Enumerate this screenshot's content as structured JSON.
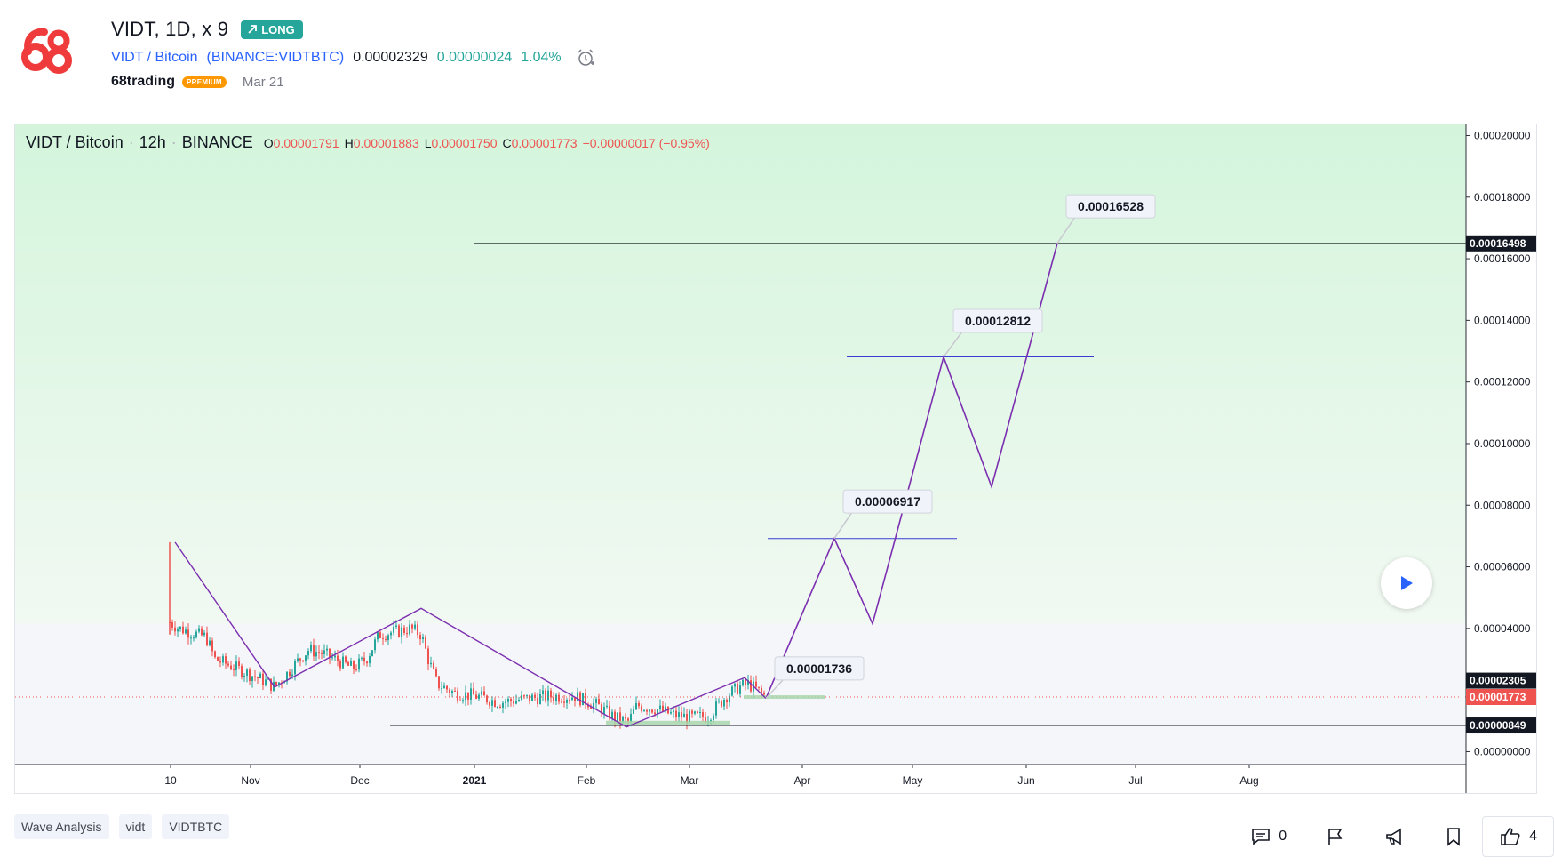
{
  "header": {
    "title": "VIDT, 1D, x 9",
    "direction_badge": "LONG",
    "symbol_name": "VIDT / Bitcoin",
    "exchange_symbol": "BINANCE:VIDTBTC",
    "price": "0.00002329",
    "change_abs": "0.00000024",
    "change_pct": "1.04%",
    "author": "68trading",
    "author_badge": "PREMIUM",
    "date": "Mar 21",
    "logo_text": "68"
  },
  "chart": {
    "legend_symbol": "VIDT / Bitcoin",
    "legend_interval": "12h",
    "legend_exchange": "BINANCE",
    "ohlc": {
      "o_label": "O",
      "o": "0.00001791",
      "h_label": "H",
      "h": "0.00001883",
      "l_label": "L",
      "l": "0.00001750",
      "c_label": "C",
      "c": "0.00001773",
      "change": "−0.00000017 (−0.95%)"
    },
    "colors": {
      "up": "#26a69a",
      "down": "#ef5350",
      "wave": "#7b2fb0",
      "level": "#3a3ad4",
      "bg_top": "#d4f5dc",
      "bg_bottom": "#f5f6fa"
    }
  },
  "chart_data": {
    "type": "candlestick",
    "title": "VIDT / Bitcoin · 12h · BINANCE",
    "y_axis_ticks": [
      "0.00020000",
      "0.00018000",
      "0.00016000",
      "0.00014000",
      "0.00012000",
      "0.00010000",
      "0.00008000",
      "0.00006000",
      "0.00004000",
      "0.00000000"
    ],
    "ylim": [
      -4.2e-06,
      0.0002036
    ],
    "x_axis_ticks": [
      "10",
      "Nov",
      "Dec",
      "2021",
      "Feb",
      "Mar",
      "Apr",
      "May",
      "Jun",
      "Jul",
      "Aug"
    ],
    "price_labels": [
      {
        "value": "0.00016498",
        "style": "dark"
      },
      {
        "value": "0.00002305",
        "style": "dark"
      },
      {
        "value": "0.00001773",
        "style": "red"
      },
      {
        "value": "0.00000849",
        "style": "dark"
      }
    ],
    "target_callouts": [
      "0.00016528",
      "0.00012812",
      "0.00006917",
      "0.00001736"
    ],
    "horizontal_levels": [
      0.00016498,
      0.00012812,
      6.917e-05,
      8.49e-06
    ],
    "current_price": 1.773e-05
  },
  "footer": {
    "tags": [
      "Wave Analysis",
      "vidt",
      "VIDTBTC"
    ],
    "comments_count": "0",
    "likes_count": "4"
  }
}
